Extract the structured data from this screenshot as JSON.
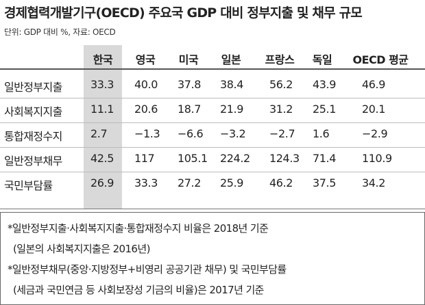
{
  "title": "경제협력개발기구(OECD) 주요국 GDP 대비 정부지출 및 채무 규모",
  "subtitle": "단위: GDP 대비 %, 자료: OECD",
  "table": {
    "columns": [
      "한국",
      "영국",
      "미국",
      "일본",
      "프랑스",
      "독일",
      "OECD 평균"
    ],
    "row_labels": [
      "일반정부지출",
      "사회복지지출",
      "통합재정수지",
      "일반정부채무",
      "국민부담률"
    ],
    "rows": [
      [
        "33.3",
        "40.0",
        "37.8",
        "38.4",
        "56.2",
        "43.9",
        "46.9"
      ],
      [
        "11.1",
        "20.6",
        "18.7",
        "21.9",
        "31.2",
        "25.1",
        "20.1"
      ],
      [
        "2.7",
        "−1.3",
        "−6.6",
        "−3.2",
        "−2.7",
        "1.6",
        "−2.9"
      ],
      [
        "42.5",
        "117",
        "105.1",
        "224.2",
        "124.3",
        "71.4",
        "110.9"
      ],
      [
        "26.9",
        "33.3",
        "27.2",
        "25.9",
        "46.2",
        "37.5",
        "34.2"
      ]
    ]
  },
  "notes": [
    "*일반정부지출·사회복지지출·통합재정수지 비율은 2018년 기준",
    "(일본의 사회복지지출은 2016년)",
    "*일반정부채무(중앙·지방정부+비영리 공공기관 채무) 및 국민부담률",
    "(세금과 국민연금 등 사회보장성 기금의 비율)은 2017년 기준"
  ]
}
